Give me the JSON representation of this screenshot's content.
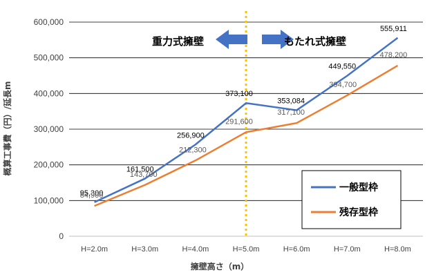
{
  "chart_data": {
    "type": "line",
    "categories": [
      "H=2.0m",
      "H=3.0m",
      "H=4.0m",
      "H=5.0m",
      "H=6.0m",
      "H=7.0m",
      "H=8.0m"
    ],
    "series": [
      {
        "name": "一般型枠",
        "color": "#4472C4",
        "values": [
          95300,
          161500,
          256900,
          373100,
          353084,
          449550,
          555911
        ],
        "labels": [
          "95,300",
          "161,500",
          "256,900",
          "373,100",
          "353,084",
          "449,550",
          "555,911"
        ]
      },
      {
        "name": "残存型枠",
        "color": "#ED7D31",
        "values": [
          84900,
          143700,
          212300,
          291600,
          317100,
          394700,
          478200
        ],
        "labels": [
          "84,900",
          "143,700",
          "212,300",
          "291,600",
          "317,100",
          "394,700",
          "478,200"
        ]
      }
    ],
    "xlabel": "擁壁高さ（m）",
    "ylabel": "概算工事費（円）/延長m",
    "ylim": [
      0,
      600000
    ],
    "yticks": [
      0,
      100000,
      200000,
      300000,
      400000,
      500000,
      600000
    ],
    "ytick_labels": [
      "0",
      "100,000",
      "200,000",
      "300,000",
      "400,000",
      "500,000",
      "600,000"
    ],
    "grid": true,
    "legend_position": "bottom-right",
    "annotations": {
      "divider_between": [
        "H=5.0m"
      ],
      "divider_color": "#FFC000",
      "left_label": "重力式擁壁",
      "right_label": "もたれ式擁壁",
      "arrow_color": "#4472C4"
    }
  }
}
